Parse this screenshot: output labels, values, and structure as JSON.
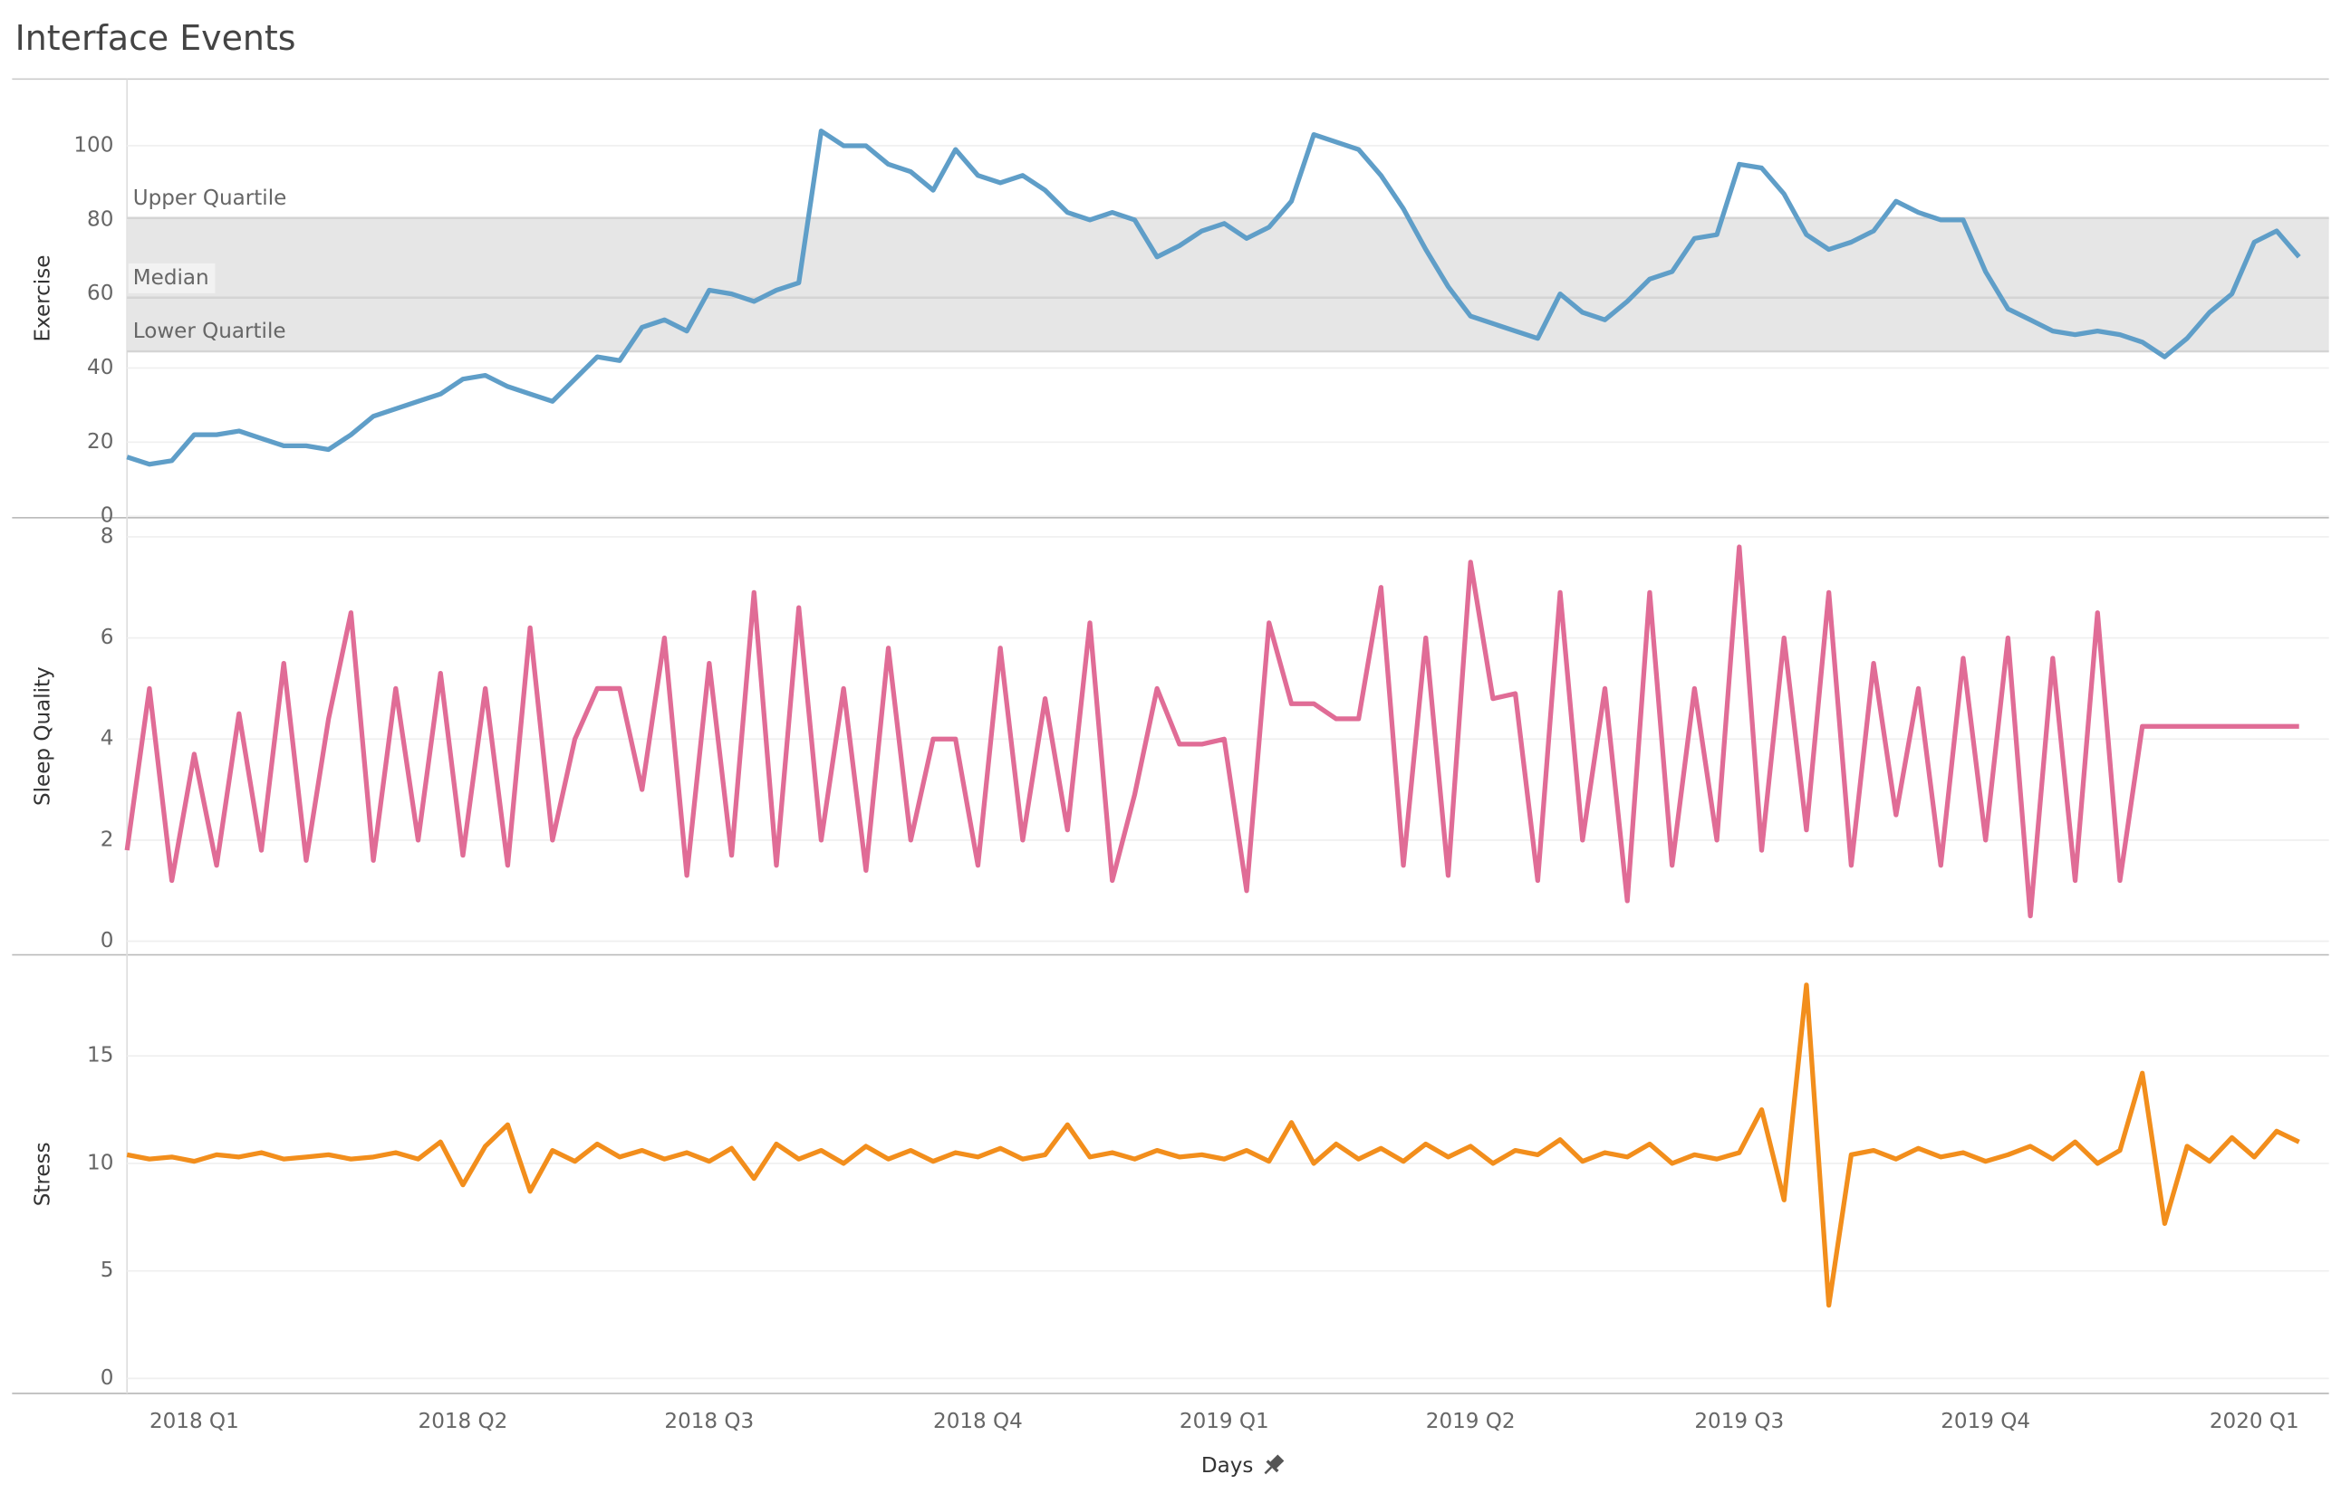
{
  "chart_data": {
    "type": "line",
    "title": "Interface Events",
    "x_label": "Days",
    "categories": [
      null,
      null,
      null,
      "2018 Q1",
      null,
      null,
      null,
      null,
      null,
      null,
      null,
      null,
      null,
      null,
      null,
      "2018 Q2",
      null,
      null,
      null,
      null,
      null,
      null,
      null,
      null,
      null,
      null,
      "2018 Q3",
      null,
      null,
      null,
      null,
      null,
      null,
      null,
      null,
      null,
      null,
      null,
      "2018 Q4",
      null,
      null,
      null,
      null,
      null,
      null,
      null,
      null,
      null,
      null,
      "2019 Q1",
      null,
      null,
      null,
      null,
      null,
      null,
      null,
      null,
      null,
      null,
      "2019 Q2",
      null,
      null,
      null,
      null,
      null,
      null,
      null,
      null,
      null,
      null,
      null,
      "2019 Q3",
      null,
      null,
      null,
      null,
      null,
      null,
      null,
      null,
      null,
      null,
      "2019 Q4",
      null,
      null,
      null,
      null,
      null,
      null,
      null,
      null,
      null,
      null,
      null,
      "2020 Q1",
      null,
      null
    ],
    "panels": [
      {
        "y_label": "Exercise",
        "color": "#5f9ec8",
        "ylim": [
          -0.4,
          118
        ],
        "yticks": [
          0,
          20,
          40,
          60,
          80,
          100
        ],
        "reference_lines": [
          {
            "label": "Upper Quartile",
            "value": 80.5
          },
          {
            "label": "Median",
            "value": 59
          },
          {
            "label": "Lower Quartile",
            "value": 44.5
          }
        ],
        "values": [
          16,
          14,
          15,
          22,
          22,
          23,
          21,
          19,
          19,
          18,
          22,
          27,
          29,
          31,
          33,
          37,
          38,
          35,
          33,
          31,
          37,
          43,
          42,
          51,
          53,
          50,
          61,
          60,
          58,
          61,
          63,
          104,
          100,
          100,
          95,
          93,
          88,
          99,
          92,
          90,
          92,
          88,
          82,
          80,
          82,
          80,
          70,
          73,
          77,
          79,
          75,
          78,
          85,
          103,
          101,
          99,
          92,
          83,
          72,
          62,
          54,
          52,
          50,
          48,
          60,
          55,
          53,
          58,
          64,
          66,
          75,
          76,
          95,
          94,
          87,
          76,
          72,
          74,
          77,
          85,
          82,
          80,
          80,
          66,
          56,
          53,
          50,
          49,
          50,
          49,
          47,
          43,
          48,
          55,
          60,
          74,
          77,
          70
        ]
      },
      {
        "y_label": "Sleep Quality",
        "color": "#e06c96",
        "ylim": [
          -0.27,
          8.38
        ],
        "yticks": [
          0,
          2,
          4,
          6,
          8
        ],
        "values": [
          1.8,
          5,
          1.2,
          3.7,
          1.5,
          4.5,
          1.8,
          5.5,
          1.6,
          4.4,
          6.5,
          1.6,
          5,
          2,
          5.3,
          1.7,
          5,
          1.5,
          6.2,
          2,
          4,
          5,
          5,
          3,
          6,
          1.3,
          5.5,
          1.7,
          6.9,
          1.5,
          6.6,
          2,
          5,
          1.4,
          5.8,
          2,
          4,
          4,
          1.5,
          5.8,
          2,
          4.8,
          2.2,
          6.3,
          1.2,
          2.9,
          5,
          3.9,
          3.9,
          4,
          1,
          6.3,
          4.7,
          4.7,
          4.4,
          4.4,
          7,
          1.5,
          6,
          1.3,
          7.5,
          4.8,
          4.9,
          1.2,
          6.9,
          2,
          5,
          0.8,
          6.9,
          1.5,
          5,
          2,
          7.8,
          1.8,
          6,
          2.2,
          6.9,
          1.5,
          5.5,
          2.5,
          5,
          1.5,
          5.6,
          2,
          6,
          0.5,
          5.6,
          1.2,
          6.5,
          1.2,
          4.25,
          4.25,
          4.25,
          4.25,
          4.25,
          4.25,
          4.25,
          4.25
        ]
      },
      {
        "y_label": "Stress",
        "color": "#f28e1c",
        "ylim": [
          -0.7,
          19.7
        ],
        "yticks": [
          0,
          5,
          10,
          15
        ],
        "values": [
          10.4,
          10.2,
          10.3,
          10.1,
          10.4,
          10.3,
          10.5,
          10.2,
          10.3,
          10.4,
          10.2,
          10.3,
          10.5,
          10.2,
          11,
          9,
          10.8,
          11.8,
          8.7,
          10.6,
          10.1,
          10.9,
          10.3,
          10.6,
          10.2,
          10.5,
          10.1,
          10.7,
          9.3,
          10.9,
          10.2,
          10.6,
          10,
          10.8,
          10.2,
          10.6,
          10.1,
          10.5,
          10.3,
          10.7,
          10.2,
          10.4,
          11.8,
          10.3,
          10.5,
          10.2,
          10.6,
          10.3,
          10.4,
          10.2,
          10.6,
          10.1,
          11.9,
          10,
          10.9,
          10.2,
          10.7,
          10.1,
          10.9,
          10.3,
          10.8,
          10,
          10.6,
          10.4,
          11.1,
          10.1,
          10.5,
          10.3,
          10.9,
          10,
          10.4,
          10.2,
          10.5,
          12.5,
          8.3,
          18.3,
          3.4,
          10.4,
          10.6,
          10.2,
          10.7,
          10.3,
          10.5,
          10.1,
          10.4,
          10.8,
          10.2,
          11,
          10,
          10.6,
          14.2,
          7.2,
          10.8,
          10.1,
          11.2,
          10.3,
          11.5,
          11
        ]
      }
    ]
  }
}
